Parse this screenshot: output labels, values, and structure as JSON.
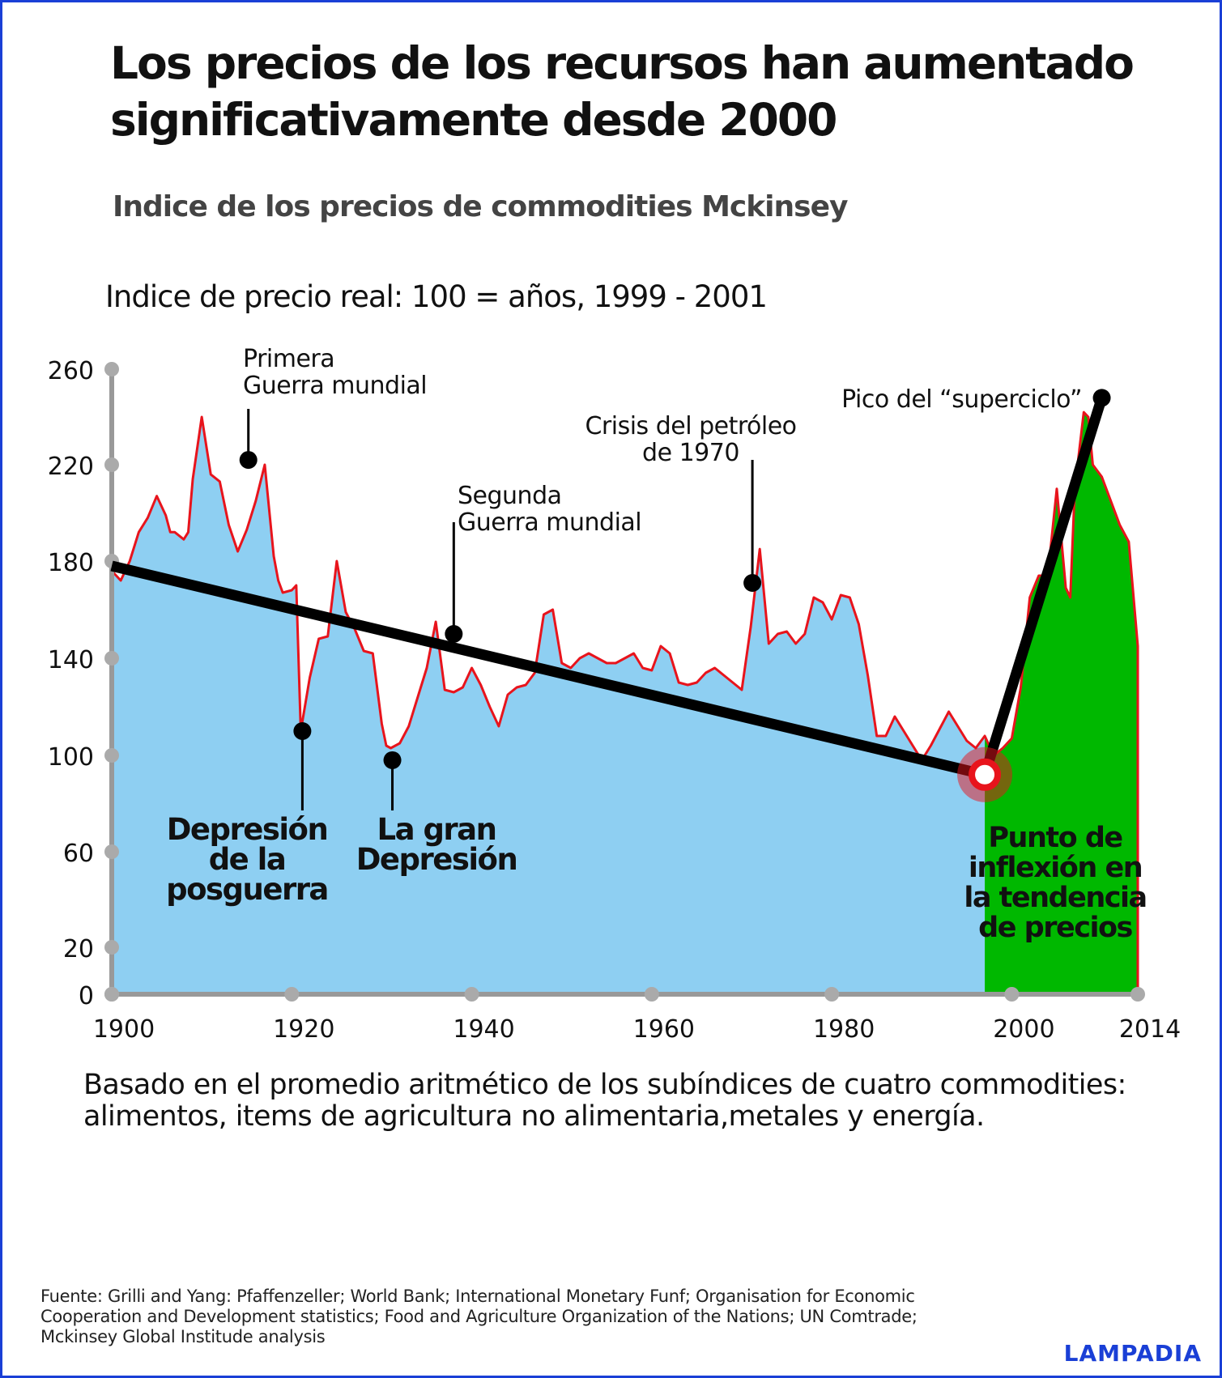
{
  "title": "Los precios de los recursos han aumentado significativamente desde 2000",
  "subtitle": "Indice de los precios de commodities Mckinsey",
  "unit_label": "Indice de precio real: 100 = años, 1999 - 2001",
  "note": "Basado en el promedio aritmético de los subíndices de cuatro commodities: alimentos, items de agricultura no alimentaria,metales y energía.",
  "source": "Fuente: Grilli and Yang: Pfaffenzeller; World Bank; International Monetary Funf; Organisation for Economic Cooperation and Development statistics; Food and Agriculture Organization of the Nations; UN Comtrade; Mckinsey Global Institude analysis",
  "logo": "LAMPADIA",
  "colors": {
    "pre_area": "#8ecff2",
    "post_area": "#00b800",
    "line": "#e8141c",
    "trend": "#000000",
    "axis": "#999999",
    "frame": "#1a3fd6",
    "highlight": "#e8141c"
  },
  "chart_data": {
    "type": "area",
    "title": "Indice de los precios de commodities Mckinsey",
    "ylabel": "Indice de precio real: 100 = años, 1999 - 2001",
    "xlabel": "",
    "x_ticks": [
      "1900",
      "1920",
      "1940",
      "1960",
      "1980",
      "2000",
      "2014"
    ],
    "y_ticks": [
      "0",
      "20",
      "60",
      "100",
      "140",
      "180",
      "220",
      "260"
    ],
    "grid": false,
    "series": [
      {
        "x": [
          1900,
          1901,
          1902,
          1903,
          1904,
          1905,
          1906,
          1906.5,
          1907,
          1908,
          1908.5,
          1909,
          1910,
          1911,
          1912,
          1913,
          1914,
          1915,
          1916,
          1917,
          1918,
          1918.5,
          1919,
          1920,
          1920.5,
          1921,
          1922,
          1923,
          1924,
          1925,
          1926,
          1927,
          1928,
          1929,
          1930,
          1930.5,
          1931,
          1932,
          1933,
          1934,
          1935,
          1936,
          1937,
          1938,
          1939,
          1940,
          1941,
          1942,
          1943,
          1944,
          1945,
          1946,
          1947,
          1948,
          1949,
          1950,
          1951,
          1952,
          1953,
          1954,
          1955,
          1956,
          1957,
          1958,
          1959,
          1960,
          1961,
          1962,
          1963,
          1964,
          1965,
          1966,
          1967,
          1968,
          1969,
          1970,
          1971,
          1972,
          1973,
          1974,
          1975,
          1976,
          1977,
          1978,
          1979,
          1980,
          1981,
          1982,
          1983,
          1984,
          1985,
          1986,
          1987,
          1988,
          1989,
          1990,
          1991,
          1992,
          1993,
          1994,
          1995,
          1996,
          1997,
          1998,
          1999,
          2000,
          2001,
          2002,
          2003,
          2004,
          2005,
          2006,
          2006.5,
          2007,
          2008,
          2008.5,
          2009,
          2010,
          2011,
          2012,
          2013,
          2014
        ],
        "y": [
          176,
          172,
          180,
          192,
          198,
          207,
          199,
          192,
          192,
          189,
          192,
          214,
          240,
          216,
          213,
          195,
          184,
          193,
          205,
          220,
          182,
          172,
          167,
          168,
          170,
          110,
          132,
          148,
          149,
          180,
          159,
          152,
          143,
          142,
          113,
          104,
          103,
          105,
          112,
          124,
          136,
          155,
          127,
          126,
          128,
          136,
          129,
          120,
          112,
          125,
          128,
          129,
          134,
          158,
          160,
          138,
          136,
          140,
          142,
          140,
          138,
          138,
          140,
          142,
          136,
          135,
          145,
          142,
          130,
          129,
          130,
          134,
          136,
          133,
          130,
          127,
          153,
          185,
          146,
          150,
          151,
          146,
          150,
          165,
          163,
          156,
          166,
          165,
          154,
          133,
          108,
          108,
          116,
          110,
          104,
          98,
          104,
          111,
          118,
          112,
          106,
          103,
          108,
          100,
          103,
          107,
          128,
          165,
          174,
          174,
          210,
          169,
          165,
          210,
          242,
          240,
          220,
          215,
          205,
          195,
          188,
          145
        ]
      }
    ],
    "annotations": [
      {
        "label": "Primera Guerra mundial",
        "x": 1915,
        "y": 222,
        "bold": false
      },
      {
        "label": "Depresión de la posguerra",
        "x": 1921,
        "y": 110,
        "bold": true
      },
      {
        "label": "La gran Depresión",
        "x": 1931,
        "y": 98,
        "bold": true
      },
      {
        "label": "Segunda Guerra mundial",
        "x": 1938,
        "y": 150,
        "bold": false
      },
      {
        "label": "Crisis del petróleo de 1970",
        "x": 1971,
        "y": 171,
        "bold": false
      },
      {
        "label": "Pico del “superciclo”",
        "x": 2010,
        "y": 248,
        "bold": false
      },
      {
        "label": "Punto de inflexión en la tendencia de precios",
        "x": 1997,
        "y": 92,
        "bold": true
      }
    ],
    "trend_line": {
      "x": [
        1900,
        1997,
        2010
      ],
      "y": [
        178,
        92,
        248
      ]
    }
  }
}
